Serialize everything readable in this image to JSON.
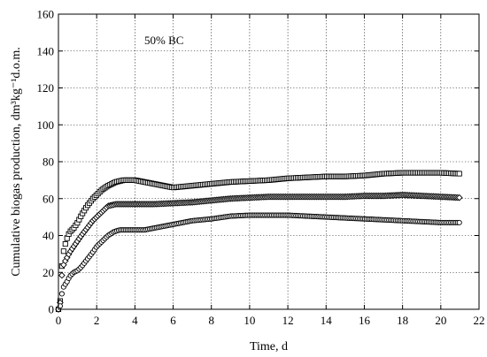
{
  "chart_data": {
    "type": "scatter",
    "title": "",
    "annotation": "50% BC",
    "xlabel": "Time, d",
    "ylabel": "Cumulative biogas production, dm³kg⁻¹d.o.m.",
    "xlim": [
      0,
      22
    ],
    "ylim": [
      0,
      160
    ],
    "xticks": [
      0,
      2,
      4,
      6,
      8,
      10,
      12,
      14,
      16,
      18,
      20,
      22
    ],
    "yticks": [
      0,
      20,
      40,
      60,
      80,
      100,
      120,
      140,
      160
    ],
    "grid": true,
    "series": [
      {
        "marker": "square",
        "x": [
          0.0,
          0.1,
          0.2,
          0.3,
          0.4,
          0.5,
          0.6,
          0.8,
          1.0,
          1.2,
          1.5,
          1.8,
          2.0,
          2.3,
          2.6,
          3.0,
          3.4,
          3.8,
          4.0,
          4.5,
          5.0,
          5.5,
          6.0,
          7.0,
          8.0,
          9.0,
          10.0,
          11.0,
          12.0,
          13.0,
          14.0,
          15.0,
          16.0,
          17.0,
          18.0,
          19.0,
          20.0,
          21.0
        ],
        "y": [
          0,
          5,
          28,
          33,
          37,
          40,
          42,
          44,
          47,
          51,
          56,
          60,
          62,
          65,
          67,
          69,
          70,
          70,
          70,
          69,
          68,
          67,
          66,
          67,
          68,
          69,
          69.5,
          70,
          71,
          71.5,
          72,
          72,
          72.5,
          73.5,
          74,
          74,
          74,
          73.5
        ]
      },
      {
        "marker": "diamond",
        "x": [
          0.0,
          0.1,
          0.2,
          0.3,
          0.4,
          0.5,
          0.6,
          0.8,
          1.0,
          1.2,
          1.5,
          1.8,
          2.0,
          2.3,
          2.6,
          3.0,
          3.4,
          3.8,
          4.0,
          5.0,
          6.0,
          7.0,
          8.0,
          9.0,
          10.0,
          11.0,
          12.0,
          13.0,
          14.0,
          15.0,
          16.0,
          17.0,
          18.0,
          19.0,
          20.0,
          21.0
        ],
        "y": [
          0,
          4,
          22,
          25,
          27,
          29,
          31,
          34,
          37,
          40,
          44,
          48,
          50,
          53,
          56,
          57,
          57,
          57,
          57,
          57,
          57.5,
          58,
          59,
          60,
          60.5,
          61,
          61,
          61,
          61,
          61,
          61.5,
          61.5,
          62,
          61.5,
          61,
          60.5
        ]
      },
      {
        "marker": "circle",
        "x": [
          0.0,
          0.1,
          0.2,
          0.3,
          0.4,
          0.5,
          0.6,
          0.8,
          1.0,
          1.2,
          1.5,
          1.8,
          2.0,
          2.3,
          2.6,
          2.9,
          3.2,
          3.5,
          4.0,
          4.5,
          5.0,
          5.5,
          6.0,
          7.0,
          8.0,
          9.0,
          10.0,
          11.0,
          12.0,
          13.0,
          14.0,
          15.0,
          16.0,
          17.0,
          18.0,
          19.0,
          20.0,
          21.0
        ],
        "y": [
          0,
          2,
          10,
          13,
          14,
          16,
          18,
          20,
          21,
          23,
          27,
          31,
          34,
          37,
          40,
          42,
          43,
          43,
          43,
          43,
          44,
          45,
          46,
          48,
          49,
          50.5,
          51,
          51,
          51,
          50.5,
          50,
          49.5,
          49,
          48.5,
          48,
          47.5,
          47,
          47
        ]
      }
    ]
  }
}
